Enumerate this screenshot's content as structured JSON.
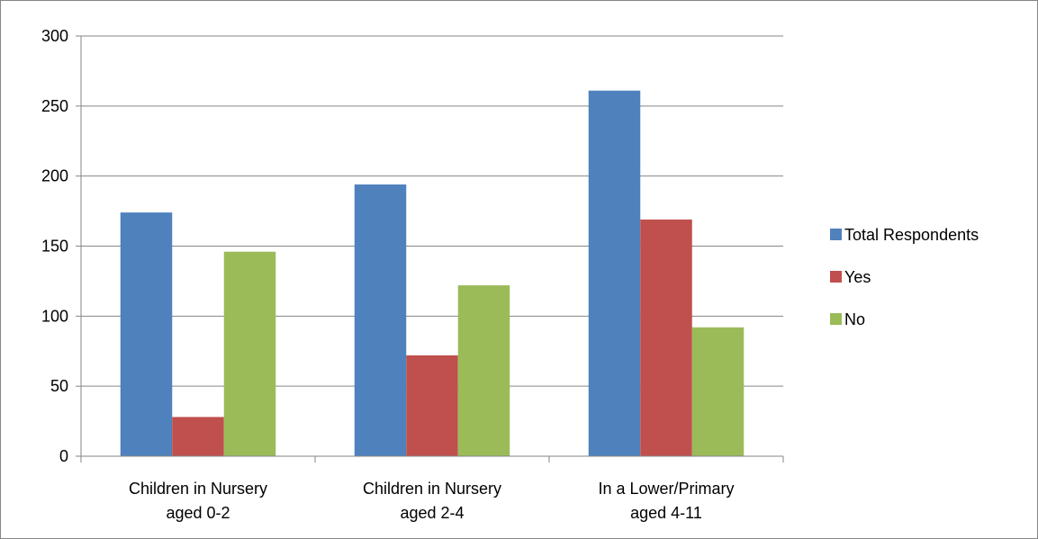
{
  "chart_data": {
    "type": "bar",
    "categories": [
      [
        "Children in Nursery",
        "aged 0-2"
      ],
      [
        "Children in Nursery",
        "aged 2-4"
      ],
      [
        "In a Lower/Primary",
        "aged 4-11"
      ]
    ],
    "series": [
      {
        "name": "Total Respondents",
        "color": "#4F81BD",
        "values": [
          174,
          194,
          261
        ]
      },
      {
        "name": "Yes",
        "color": "#C0504D",
        "values": [
          28,
          72,
          169
        ]
      },
      {
        "name": "No",
        "color": "#9BBB59",
        "values": [
          146,
          122,
          92
        ]
      }
    ],
    "yticks": [
      0,
      50,
      100,
      150,
      200,
      250,
      300
    ],
    "ylim": [
      0,
      300
    ],
    "grid": true,
    "legend_position": "right",
    "title": "",
    "xlabel": "",
    "ylabel": ""
  }
}
